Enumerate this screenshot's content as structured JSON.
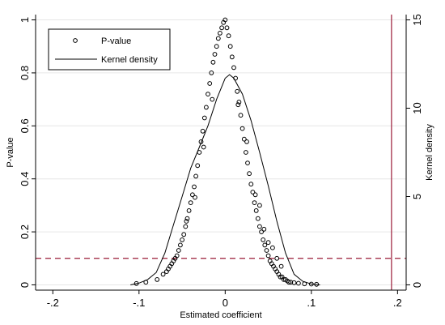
{
  "chart_data": {
    "type": "scatter",
    "xlabel": "Estimated coefficient",
    "ylabel": "P-value",
    "y2label": "Kernel density",
    "xlim": [
      -0.22,
      0.21
    ],
    "ylim": [
      -0.02,
      1.02
    ],
    "y2lim": [
      -0.3,
      15.3
    ],
    "x_ticks": [
      -0.2,
      -0.1,
      0,
      0.1,
      0.2
    ],
    "x_tick_labels": [
      "-.2",
      "-.1",
      "0",
      ".1",
      ".2"
    ],
    "y_ticks": [
      0,
      0.2,
      0.4,
      0.6,
      0.8,
      1
    ],
    "y_tick_labels": [
      "0",
      "0.2",
      "0.4",
      "0.6",
      "0.8",
      "1"
    ],
    "y2_ticks": [
      0,
      5,
      10,
      15
    ],
    "y2_tick_labels": [
      "0",
      "5",
      "10",
      "15"
    ],
    "grid": "horizontal",
    "legend_position": "top-left",
    "reference_lines": [
      {
        "orientation": "horizontal",
        "axis": "y",
        "value": 0.1,
        "style": "dashed",
        "color": "#9b1c38"
      },
      {
        "orientation": "vertical",
        "axis": "x",
        "value": 0.193,
        "style": "solid",
        "color": "#9b1c38"
      }
    ],
    "series": [
      {
        "name": "P-value",
        "kind": "scatter",
        "marker": "hollow-circle",
        "color": "#000000",
        "x": [
          -0.103,
          -0.092,
          -0.079,
          -0.072,
          -0.068,
          -0.066,
          -0.064,
          -0.062,
          -0.06,
          -0.058,
          -0.056,
          -0.054,
          -0.052,
          -0.05,
          -0.048,
          -0.046,
          -0.044,
          -0.042,
          -0.04,
          -0.038,
          -0.036,
          -0.034,
          -0.032,
          -0.03,
          -0.028,
          -0.026,
          -0.024,
          -0.022,
          -0.02,
          -0.018,
          -0.016,
          -0.014,
          -0.012,
          -0.01,
          -0.008,
          -0.006,
          -0.004,
          -0.002,
          0,
          0.002,
          0.004,
          0.006,
          0.008,
          0.01,
          0.012,
          0.014,
          0.016,
          0.018,
          0.02,
          0.022,
          0.024,
          0.026,
          0.028,
          0.03,
          0.032,
          0.034,
          0.036,
          0.038,
          0.04,
          0.042,
          0.044,
          0.046,
          0.048,
          0.05,
          0.052,
          0.054,
          0.056,
          0.058,
          0.06,
          0.062,
          0.064,
          0.066,
          0.068,
          0.07,
          0.072,
          0.074,
          0.076,
          0.08,
          0.085,
          0.092,
          0.1,
          0.106,
          -0.045,
          -0.035,
          -0.025,
          -0.015,
          0.015,
          0.025,
          0.035,
          0.045,
          0.04,
          0.05,
          0.055,
          0.06,
          0.065
        ],
        "y": [
          0.005,
          0.01,
          0.02,
          0.04,
          0.05,
          0.06,
          0.07,
          0.08,
          0.09,
          0.1,
          0.11,
          0.13,
          0.15,
          0.17,
          0.19,
          0.22,
          0.25,
          0.28,
          0.31,
          0.34,
          0.37,
          0.41,
          0.45,
          0.5,
          0.54,
          0.58,
          0.63,
          0.67,
          0.72,
          0.76,
          0.8,
          0.84,
          0.87,
          0.9,
          0.93,
          0.95,
          0.97,
          0.99,
          1.0,
          0.97,
          0.94,
          0.9,
          0.86,
          0.82,
          0.78,
          0.73,
          0.69,
          0.64,
          0.59,
          0.55,
          0.5,
          0.46,
          0.42,
          0.38,
          0.35,
          0.31,
          0.28,
          0.25,
          0.22,
          0.2,
          0.17,
          0.15,
          0.13,
          0.11,
          0.09,
          0.08,
          0.07,
          0.06,
          0.05,
          0.04,
          0.03,
          0.03,
          0.02,
          0.02,
          0.015,
          0.01,
          0.01,
          0.008,
          0.006,
          0.004,
          0.003,
          0.002,
          0.24,
          0.33,
          0.52,
          0.7,
          0.68,
          0.54,
          0.34,
          0.21,
          0.3,
          0.16,
          0.14,
          0.1,
          0.07
        ]
      },
      {
        "name": "Kernel density",
        "kind": "line",
        "axis": "y2",
        "color": "#000000",
        "x": [
          -0.11,
          -0.1,
          -0.09,
          -0.08,
          -0.07,
          -0.06,
          -0.05,
          -0.04,
          -0.03,
          -0.02,
          -0.01,
          0,
          0.005,
          0.01,
          0.02,
          0.03,
          0.04,
          0.05,
          0.06,
          0.07,
          0.08,
          0.09,
          0.1,
          0.11
        ],
        "y": [
          0.0,
          0.1,
          0.3,
          0.7,
          1.8,
          3.4,
          5.0,
          6.6,
          7.8,
          9.0,
          10.5,
          11.7,
          11.9,
          11.7,
          10.8,
          9.3,
          7.5,
          5.6,
          3.6,
          1.8,
          0.6,
          0.2,
          0.05,
          0.0
        ]
      }
    ]
  }
}
